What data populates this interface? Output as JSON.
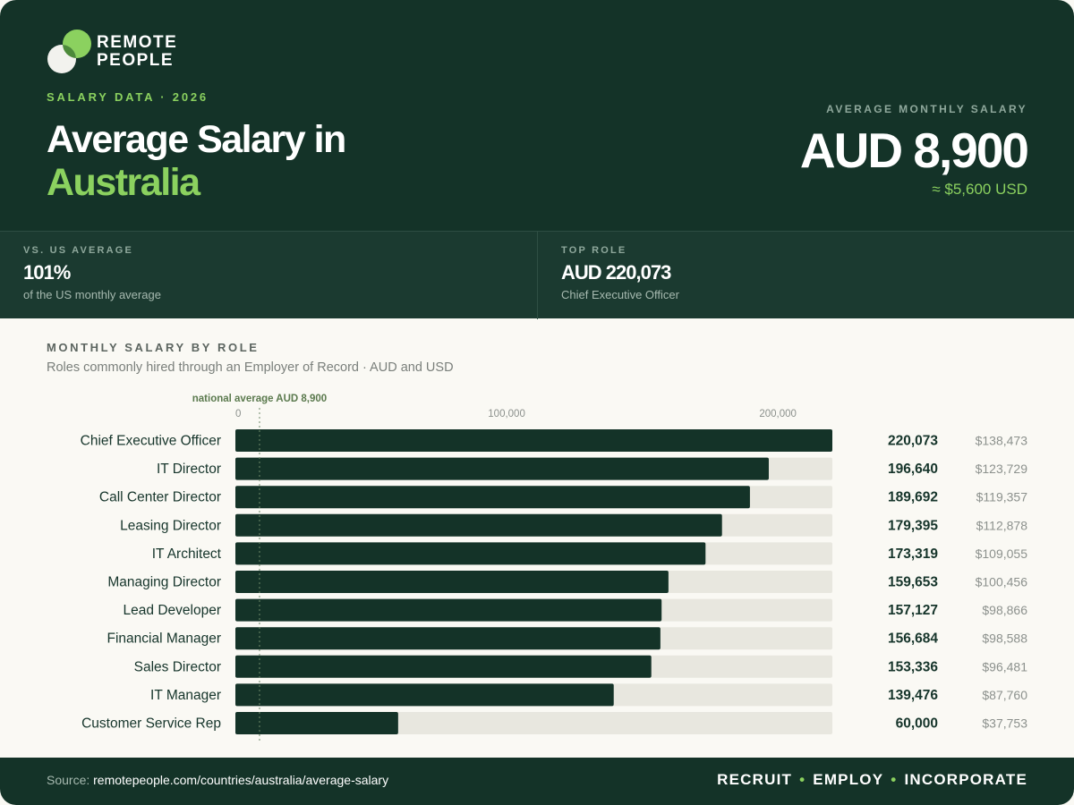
{
  "brand": {
    "line1": "REMOTE",
    "line2": "PEOPLE",
    "colors": {
      "dark": "#143328",
      "accent": "#8bd15f",
      "bar": "#143328",
      "track": "#e8e7df"
    }
  },
  "header": {
    "kicker": "SALARY DATA · 2026",
    "title_line1": "Average Salary in",
    "title_line2": "Australia",
    "kpi_label": "AVERAGE MONTHLY SALARY",
    "kpi_value": "AUD 8,900",
    "kpi_usd": "≈ $5,600 USD"
  },
  "stats": [
    {
      "label": "VS. US AVERAGE",
      "value": "101%",
      "sub": "of the US monthly average"
    },
    {
      "label": "TOP ROLE",
      "value": "AUD 220,073",
      "sub": "Chief Executive Officer"
    }
  ],
  "section": {
    "title": "MONTHLY SALARY BY ROLE",
    "subtitle": "Roles commonly hired through an Employer of Record · AUD and USD"
  },
  "chart_data": {
    "type": "bar",
    "orientation": "horizontal",
    "xlim": [
      0,
      220073
    ],
    "ticks": [
      {
        "value": 0,
        "label": "0"
      },
      {
        "value": 100000,
        "label": "100,000"
      },
      {
        "value": 200000,
        "label": "200,000"
      }
    ],
    "reference_line": {
      "value": 8900,
      "label": "national average AUD 8,900"
    },
    "categories": [
      "Chief Executive Officer",
      "IT Director",
      "Call Center Director",
      "Leasing Director",
      "IT Architect",
      "Managing Director",
      "Lead Developer",
      "Financial Manager",
      "Sales Director",
      "IT Manager",
      "Customer Service Rep"
    ],
    "values": [
      220073,
      196640,
      189692,
      179395,
      173319,
      159653,
      157127,
      156684,
      153336,
      139476,
      60000
    ],
    "value_labels": [
      "220,073",
      "196,640",
      "189,692",
      "179,395",
      "173,319",
      "159,653",
      "157,127",
      "156,684",
      "153,336",
      "139,476",
      "60,000"
    ],
    "usd_labels": [
      "$138,473",
      "$123,729",
      "$119,357",
      "$112,878",
      "$109,055",
      "$100,456",
      "$98,866",
      "$98,588",
      "$96,481",
      "$87,760",
      "$37,753"
    ]
  },
  "footer": {
    "source_prefix": "Source:",
    "source_url": "remotepeople.com/countries/australia/average-salary",
    "tag1": "RECRUIT",
    "tag2": "EMPLOY",
    "tag3": "INCORPORATE",
    "sep": "•"
  }
}
